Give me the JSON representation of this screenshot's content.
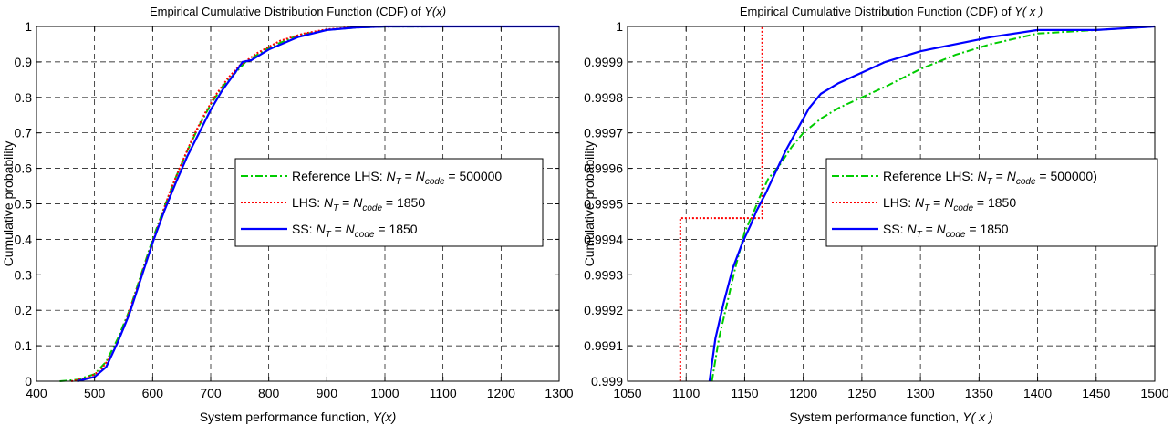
{
  "chart_data": [
    {
      "type": "line",
      "title": "Empirical Cumulative Distribution Function (CDF) of",
      "title_var": "Y(x)",
      "xlabel": "System performance function,",
      "xlabel_var": "Y(x)",
      "ylabel": "Cumulative probability",
      "xlim": [
        400,
        1300
      ],
      "ylim": [
        0,
        1
      ],
      "xticks": [
        400,
        500,
        600,
        700,
        800,
        900,
        1000,
        1100,
        1200,
        1300
      ],
      "yticks": [
        0,
        0.1,
        0.2,
        0.3,
        0.4,
        0.5,
        0.6,
        0.7,
        0.8,
        0.9,
        1
      ],
      "xtick_labels": [
        "400",
        "500",
        "600",
        "700",
        "800",
        "900",
        "1000",
        "1100",
        "1200",
        "1300"
      ],
      "ytick_labels": [
        "0",
        "0.1",
        "0.2",
        "0.3",
        "0.4",
        "0.5",
        "0.6",
        "0.7",
        "0.8",
        "0.9",
        "1"
      ],
      "grid": true,
      "legend_position": "center-right",
      "series": [
        {
          "name": "Reference LHS: N_T = N_code = 500000",
          "label_text": "Reference LHS:",
          "label_suffix": "= 500000",
          "color": "#00cc00",
          "style": "dashdot",
          "x": [
            440,
            470,
            500,
            520,
            540,
            560,
            580,
            600,
            620,
            640,
            660,
            680,
            700,
            720,
            740,
            760,
            800,
            850,
            900,
            950,
            1000,
            1100,
            1300
          ],
          "y": [
            0,
            0.004,
            0.02,
            0.055,
            0.12,
            0.2,
            0.3,
            0.4,
            0.49,
            0.575,
            0.65,
            0.72,
            0.78,
            0.83,
            0.865,
            0.9,
            0.94,
            0.975,
            0.99,
            0.997,
            0.9995,
            1,
            1
          ]
        },
        {
          "name": "LHS: N_T = N_code = 1850",
          "label_text": "LHS:",
          "label_suffix": "= 1850",
          "color": "#ff0000",
          "style": "dotted",
          "x": [
            460,
            490,
            510,
            530,
            550,
            570,
            590,
            610,
            630,
            650,
            670,
            690,
            710,
            730,
            750,
            780,
            820,
            860,
            900,
            950,
            1000,
            1300
          ],
          "y": [
            0,
            0.01,
            0.03,
            0.075,
            0.15,
            0.245,
            0.345,
            0.44,
            0.535,
            0.615,
            0.69,
            0.755,
            0.81,
            0.855,
            0.89,
            0.925,
            0.96,
            0.98,
            0.992,
            0.998,
            1,
            1
          ]
        },
        {
          "name": "SS: N_T = N_code = 1850",
          "label_text": "SS:",
          "label_suffix": "= 1850",
          "color": "#0000ff",
          "style": "solid",
          "x": [
            470,
            500,
            520,
            540,
            560,
            580,
            600,
            620,
            640,
            660,
            680,
            700,
            720,
            740,
            755,
            770,
            800,
            850,
            900,
            950,
            1000,
            1300
          ],
          "y": [
            0,
            0.012,
            0.04,
            0.11,
            0.19,
            0.29,
            0.39,
            0.48,
            0.56,
            0.635,
            0.7,
            0.765,
            0.82,
            0.865,
            0.9,
            0.905,
            0.935,
            0.97,
            0.99,
            0.997,
            1,
            1
          ]
        }
      ]
    },
    {
      "type": "line",
      "title": "Empirical Cumulative Distribution Function (CDF) of",
      "title_var": "Y( x )",
      "xlabel": "System performance function,",
      "xlabel_var": "Y( x )",
      "ylabel": "Cumulative probability",
      "xlim": [
        1050,
        1500
      ],
      "ylim": [
        0.999,
        1
      ],
      "xticks": [
        1050,
        1100,
        1150,
        1200,
        1250,
        1300,
        1350,
        1400,
        1450,
        1500
      ],
      "yticks": [
        0.999,
        0.9991,
        0.9992,
        0.9993,
        0.9994,
        0.9995,
        0.9996,
        0.9997,
        0.9998,
        0.9999,
        1
      ],
      "xtick_labels": [
        "1050",
        "1100",
        "1150",
        "1200",
        "1250",
        "1300",
        "1350",
        "1400",
        "1450",
        "1500"
      ],
      "ytick_labels": [
        "0.999",
        "0.9991",
        "0.9992",
        "0.9993",
        "0.9994",
        "0.9995",
        "0.9996",
        "0.9997",
        "0.9998",
        "0.9999",
        "1"
      ],
      "grid": true,
      "legend_position": "center-right",
      "series": [
        {
          "name": "Reference LHS: N_T = N_code = 500000)",
          "label_text": "Reference LHS:",
          "label_suffix": "= 500000)",
          "color": "#00cc00",
          "style": "dashdot",
          "x": [
            1122,
            1128,
            1135,
            1142,
            1150,
            1158,
            1163,
            1170,
            1180,
            1190,
            1200,
            1215,
            1230,
            1250,
            1270,
            1300,
            1330,
            1360,
            1400,
            1450,
            1500
          ],
          "y": [
            0.999,
            0.99912,
            0.99922,
            0.99932,
            0.99942,
            0.99948,
            0.99952,
            0.99957,
            0.99961,
            0.99966,
            0.9997,
            0.99974,
            0.99977,
            0.9998,
            0.99983,
            0.99988,
            0.99992,
            0.99995,
            0.99998,
            0.99999,
            1
          ]
        },
        {
          "name": "LHS: N_T = N_code = 1850",
          "label_text": "LHS:",
          "label_suffix": "= 1850",
          "color": "#ff0000",
          "style": "dotted",
          "x": [
            1095,
            1095,
            1165,
            1165
          ],
          "y": [
            0.999,
            0.99946,
            0.99946,
            1
          ]
        },
        {
          "name": "SS: N_T = N_code = 1850",
          "label_text": "SS:",
          "label_suffix": "= 1850",
          "color": "#0000ff",
          "style": "solid",
          "x": [
            1120,
            1125,
            1132,
            1140,
            1148,
            1155,
            1160,
            1168,
            1175,
            1185,
            1195,
            1205,
            1215,
            1230,
            1250,
            1270,
            1300,
            1330,
            1360,
            1400,
            1450,
            1500
          ],
          "y": [
            0.999,
            0.99912,
            0.99922,
            0.99932,
            0.99939,
            0.99944,
            0.99948,
            0.99953,
            0.99958,
            0.99965,
            0.99971,
            0.99977,
            0.99981,
            0.99984,
            0.99987,
            0.9999,
            0.99993,
            0.99995,
            0.99997,
            0.99999,
            0.99999,
            1
          ]
        }
      ]
    }
  ],
  "legend_sym": {
    "N": "N",
    "sub_T": "T",
    "sub_code": "code",
    "eq": "="
  }
}
